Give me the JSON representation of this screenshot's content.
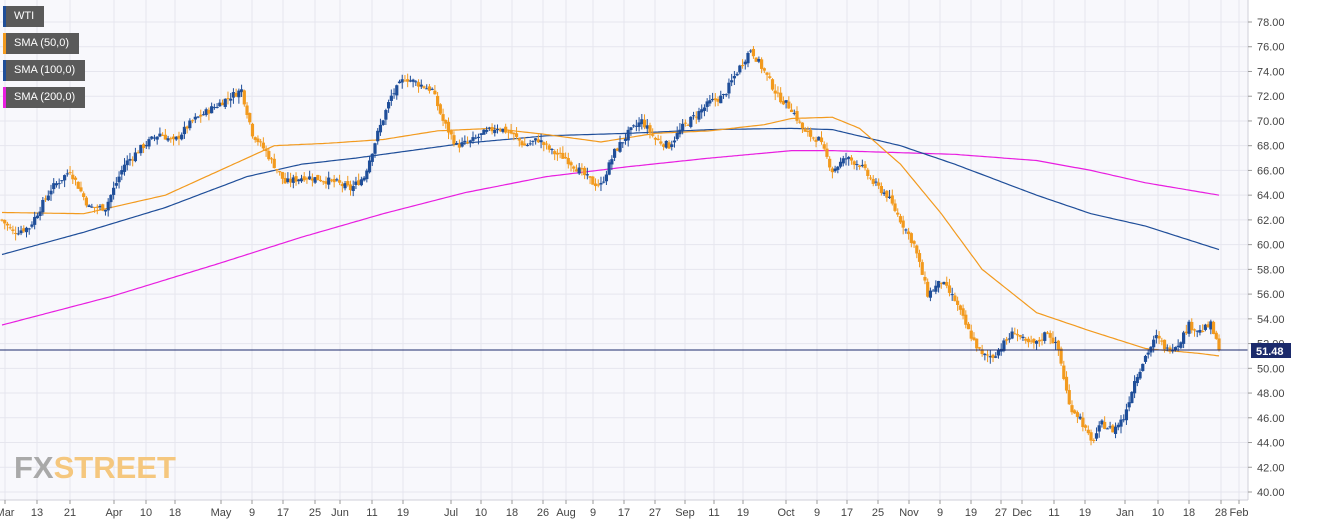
{
  "colors": {
    "bull": "#1f4e99",
    "bear": "#f29a1e",
    "sma50": "#f29a1e",
    "sma100": "#1f4e99",
    "sma200": "#e81ee0",
    "price_line": "#1b2a6b",
    "grid": "#e6e6ee",
    "price_tag_bg": "#1b2a6b"
  },
  "legend": [
    {
      "label": "WTI",
      "color": "#1f4e99"
    },
    {
      "label": "SMA (50,0)",
      "color": "#f29a1e"
    },
    {
      "label": "SMA (100,0)",
      "color": "#1f4e99"
    },
    {
      "label": "SMA (200,0)",
      "color": "#e81ee0"
    }
  ],
  "logo": {
    "part1": "FX",
    "part2": "STREET"
  },
  "chart_data": {
    "type": "candlestick",
    "instrument": "WTI",
    "timeframe": "daily",
    "ylim": [
      40,
      79
    ],
    "y_ticks": [
      "40.00",
      "42.00",
      "44.00",
      "46.00",
      "48.00",
      "50.00",
      "52.00",
      "54.00",
      "56.00",
      "58.00",
      "60.00",
      "62.00",
      "64.00",
      "66.00",
      "68.00",
      "70.00",
      "72.00",
      "74.00",
      "76.00",
      "78.00"
    ],
    "x_ticks": [
      "Mar",
      "13",
      "21",
      "Apr",
      "10",
      "18",
      "May",
      "9",
      "17",
      "25",
      "Jun",
      "11",
      "19",
      "Jul",
      "10",
      "18",
      "26",
      "Aug",
      "9",
      "17",
      "27",
      "Sep",
      "11",
      "19",
      "Oct",
      "9",
      "17",
      "25",
      "Nov",
      "9",
      "19",
      "27",
      "Dec",
      "11",
      "19",
      "Jan",
      "10",
      "18",
      "28",
      "Feb"
    ],
    "current_price": "51.48",
    "close_anchors": [
      [
        0,
        62.0
      ],
      [
        4,
        61.0
      ],
      [
        10,
        61.4
      ],
      [
        18,
        64.5
      ],
      [
        25,
        66.0
      ],
      [
        32,
        63.0
      ],
      [
        38,
        63.0
      ],
      [
        45,
        66.5
      ],
      [
        52,
        68.0
      ],
      [
        58,
        69.0
      ],
      [
        63,
        68.3
      ],
      [
        70,
        70.0
      ],
      [
        77,
        71.0
      ],
      [
        84,
        72.0
      ],
      [
        88,
        72.5
      ],
      [
        92,
        69.0
      ],
      [
        97,
        67.5
      ],
      [
        104,
        65.0
      ],
      [
        111,
        65.5
      ],
      [
        117,
        65.3
      ],
      [
        123,
        65.0
      ],
      [
        128,
        64.5
      ],
      [
        133,
        65.5
      ],
      [
        138,
        69.0
      ],
      [
        143,
        72.0
      ],
      [
        148,
        73.5
      ],
      [
        153,
        73.0
      ],
      [
        158,
        72.5
      ],
      [
        162,
        70.0
      ],
      [
        167,
        68.0
      ],
      [
        172,
        68.3
      ],
      [
        177,
        69.0
      ],
      [
        182,
        69.5
      ],
      [
        187,
        69.0
      ],
      [
        192,
        68.0
      ],
      [
        197,
        68.5
      ],
      [
        202,
        67.5
      ],
      [
        207,
        67.0
      ],
      [
        212,
        66.0
      ],
      [
        217,
        65.0
      ],
      [
        220,
        64.8
      ],
      [
        225,
        67.5
      ],
      [
        230,
        69.0
      ],
      [
        235,
        70.0
      ],
      [
        240,
        68.5
      ],
      [
        245,
        68.0
      ],
      [
        250,
        69.5
      ],
      [
        255,
        70.5
      ],
      [
        260,
        71.5
      ],
      [
        265,
        72.0
      ],
      [
        270,
        74.0
      ],
      [
        275,
        75.8
      ],
      [
        280,
        74.0
      ],
      [
        285,
        72.0
      ],
      [
        290,
        71.0
      ],
      [
        295,
        69.0
      ],
      [
        300,
        68.5
      ],
      [
        305,
        66.0
      ],
      [
        310,
        67.0
      ],
      [
        315,
        66.5
      ],
      [
        320,
        65.0
      ],
      [
        325,
        64.0
      ],
      [
        330,
        62.0
      ],
      [
        335,
        60.0
      ],
      [
        340,
        56.0
      ],
      [
        345,
        57.0
      ],
      [
        350,
        55.5
      ],
      [
        355,
        53.0
      ],
      [
        360,
        51.0
      ],
      [
        364,
        51.0
      ],
      [
        368,
        52.0
      ],
      [
        372,
        53.0
      ],
      [
        376,
        52.0
      ],
      [
        380,
        52.0
      ],
      [
        384,
        53.0
      ],
      [
        388,
        51.5
      ],
      [
        392,
        47.0
      ],
      [
        396,
        46.0
      ],
      [
        400,
        44.0
      ],
      [
        404,
        45.5
      ],
      [
        408,
        45.0
      ],
      [
        412,
        46.0
      ],
      [
        416,
        49.0
      ],
      [
        420,
        51.0
      ],
      [
        424,
        52.5
      ],
      [
        428,
        51.5
      ],
      [
        432,
        52.0
      ],
      [
        436,
        53.5
      ],
      [
        440,
        53.0
      ],
      [
        444,
        53.5
      ],
      [
        447,
        51.48
      ]
    ],
    "sma_50_anchors": [
      [
        0,
        62.6
      ],
      [
        30,
        62.5
      ],
      [
        60,
        64.0
      ],
      [
        80,
        66.0
      ],
      [
        100,
        68.0
      ],
      [
        120,
        68.2
      ],
      [
        140,
        68.5
      ],
      [
        160,
        69.2
      ],
      [
        180,
        69.4
      ],
      [
        200,
        68.9
      ],
      [
        220,
        68.3
      ],
      [
        240,
        69.0
      ],
      [
        260,
        69.2
      ],
      [
        280,
        69.7
      ],
      [
        290,
        70.2
      ],
      [
        305,
        70.3
      ],
      [
        315,
        69.4
      ],
      [
        330,
        66.5
      ],
      [
        345,
        62.5
      ],
      [
        360,
        58.0
      ],
      [
        380,
        54.5
      ],
      [
        400,
        53.0
      ],
      [
        420,
        51.6
      ],
      [
        440,
        51.2
      ],
      [
        447,
        51.0
      ]
    ],
    "sma_100_anchors": [
      [
        0,
        59.2
      ],
      [
        30,
        61.0
      ],
      [
        60,
        63.0
      ],
      [
        90,
        65.5
      ],
      [
        110,
        66.5
      ],
      [
        130,
        67.0
      ],
      [
        150,
        67.6
      ],
      [
        170,
        68.2
      ],
      [
        200,
        68.8
      ],
      [
        230,
        69.0
      ],
      [
        260,
        69.3
      ],
      [
        290,
        69.4
      ],
      [
        305,
        69.3
      ],
      [
        330,
        68.0
      ],
      [
        350,
        66.5
      ],
      [
        380,
        64.0
      ],
      [
        400,
        62.5
      ],
      [
        420,
        61.5
      ],
      [
        447,
        59.6
      ]
    ],
    "sma_200_anchors": [
      [
        0,
        53.5
      ],
      [
        40,
        55.8
      ],
      [
        80,
        58.5
      ],
      [
        110,
        60.6
      ],
      [
        140,
        62.5
      ],
      [
        170,
        64.2
      ],
      [
        200,
        65.5
      ],
      [
        230,
        66.3
      ],
      [
        260,
        67.0
      ],
      [
        290,
        67.6
      ],
      [
        305,
        67.6
      ],
      [
        320,
        67.5
      ],
      [
        350,
        67.3
      ],
      [
        380,
        66.8
      ],
      [
        400,
        66.0
      ],
      [
        420,
        65.0
      ],
      [
        447,
        64.0
      ]
    ]
  }
}
